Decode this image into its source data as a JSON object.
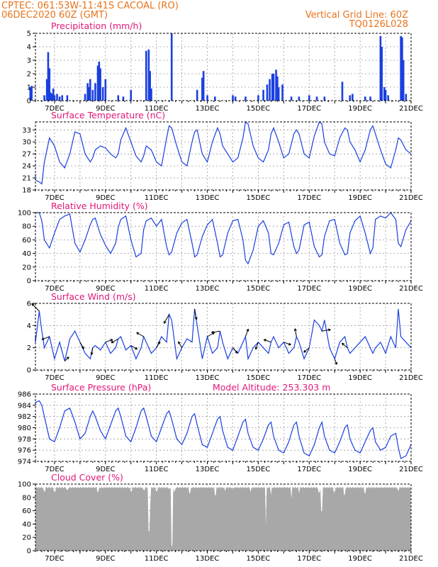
{
  "header": {
    "line1": "CPTEC:  061:53W-11:41S  CACOAL (RO)",
    "line2": "06DEC2020 60Z (GMT)",
    "right1": "Vertical Grid Line: 60Z",
    "right2": "TQ0126L028"
  },
  "colors": {
    "header": "#e8731c",
    "panel_title": "#e0187a",
    "series": "#1a3fe0",
    "cloud_fill": "#a8a8a8",
    "wind_arrow": "#000000"
  },
  "chart_data": [
    {
      "id": "precip",
      "type": "bar",
      "title": "Precipitation (mm/h)",
      "ylim": [
        0,
        5
      ],
      "yticks": [
        0,
        1,
        2,
        3,
        4,
        5
      ],
      "x_tick_labels": [
        "7DEC",
        "9DEC",
        "11DEC",
        "13DEC",
        "15DEC",
        "17DEC",
        "19DEC",
        "21DEC"
      ],
      "grid": true,
      "bars": [
        [
          6.05,
          1.0
        ],
        [
          6.1,
          1.1
        ],
        [
          6.6,
          0.4
        ],
        [
          6.7,
          1.6
        ],
        [
          6.75,
          3.6
        ],
        [
          6.8,
          2.4
        ],
        [
          6.85,
          0.6
        ],
        [
          6.9,
          0.5
        ],
        [
          6.95,
          0.9
        ],
        [
          7.0,
          0.4
        ],
        [
          7.1,
          0.5
        ],
        [
          7.2,
          0.3
        ],
        [
          7.3,
          0.4
        ],
        [
          7.5,
          0.4
        ],
        [
          8.2,
          0.5
        ],
        [
          8.3,
          1.3
        ],
        [
          8.35,
          1.0
        ],
        [
          8.4,
          1.6
        ],
        [
          8.5,
          0.8
        ],
        [
          8.6,
          1.3
        ],
        [
          8.7,
          2.6
        ],
        [
          8.75,
          2.9
        ],
        [
          8.8,
          2.4
        ],
        [
          8.9,
          1.0
        ],
        [
          9.0,
          1.6
        ],
        [
          9.5,
          0.4
        ],
        [
          9.7,
          0.3
        ],
        [
          10.0,
          0.8
        ],
        [
          10.6,
          3.7
        ],
        [
          10.7,
          3.8
        ],
        [
          10.75,
          2.2
        ],
        [
          10.8,
          0.9
        ],
        [
          11.6,
          5.0
        ],
        [
          12.6,
          0.8
        ],
        [
          12.8,
          1.7
        ],
        [
          12.85,
          2.2
        ],
        [
          13.0,
          0.4
        ],
        [
          13.3,
          0.3
        ],
        [
          14.0,
          0.4
        ],
        [
          14.1,
          0.3
        ],
        [
          14.5,
          0.3
        ],
        [
          15.0,
          0.4
        ],
        [
          15.2,
          0.8
        ],
        [
          15.35,
          1.2
        ],
        [
          15.45,
          1.6
        ],
        [
          15.55,
          2.0
        ],
        [
          15.6,
          2.0
        ],
        [
          15.7,
          2.3
        ],
        [
          15.75,
          1.8
        ],
        [
          15.8,
          1.0
        ],
        [
          15.95,
          1.2
        ],
        [
          16.3,
          0.3
        ],
        [
          16.6,
          0.3
        ],
        [
          17.0,
          0.4
        ],
        [
          17.3,
          0.3
        ],
        [
          17.6,
          0.3
        ],
        [
          18.3,
          1.4
        ],
        [
          18.6,
          0.4
        ],
        [
          18.7,
          0.5
        ],
        [
          19.2,
          0.3
        ],
        [
          19.4,
          0.3
        ],
        [
          19.8,
          4.8
        ],
        [
          19.85,
          4.0
        ],
        [
          19.95,
          1.0
        ],
        [
          20.0,
          0.8
        ],
        [
          20.1,
          0.4
        ],
        [
          20.6,
          4.8
        ],
        [
          20.65,
          4.7
        ],
        [
          20.7,
          3.0
        ],
        [
          20.8,
          0.5
        ]
      ]
    },
    {
      "id": "temp",
      "type": "line",
      "title": "Surface Temperature (nC)",
      "ylim": [
        18,
        35
      ],
      "yticks": [
        18,
        21,
        24,
        27,
        30,
        33
      ],
      "x_tick_labels": [
        "7DEC",
        "9DEC",
        "11DEC",
        "13DEC",
        "15DEC",
        "17DEC",
        "19DEC",
        "21DEC"
      ],
      "grid": true,
      "x": [
        6.0,
        6.2,
        6.4,
        6.5,
        6.6,
        6.8,
        7.0,
        7.2,
        7.4,
        7.6,
        7.8,
        8.0,
        8.2,
        8.4,
        8.5,
        8.6,
        8.8,
        9.0,
        9.2,
        9.4,
        9.5,
        9.6,
        9.8,
        10.0,
        10.2,
        10.4,
        10.5,
        10.6,
        10.8,
        11.0,
        11.2,
        11.4,
        11.5,
        11.6,
        11.8,
        12.0,
        12.2,
        12.4,
        12.5,
        12.6,
        12.8,
        13.0,
        13.2,
        13.4,
        13.5,
        13.6,
        13.8,
        14.0,
        14.2,
        14.4,
        14.5,
        14.6,
        14.8,
        15.0,
        15.2,
        15.4,
        15.5,
        15.6,
        15.8,
        16.0,
        16.2,
        16.4,
        16.5,
        16.6,
        16.8,
        17.0,
        17.2,
        17.4,
        17.5,
        17.6,
        17.8,
        18.0,
        18.2,
        18.4,
        18.5,
        18.6,
        18.8,
        19.0,
        19.2,
        19.4,
        19.5,
        19.6,
        19.8,
        20.0,
        20.2,
        20.4,
        20.5,
        20.6,
        20.8,
        21.0
      ],
      "y": [
        22.0,
        20.5,
        20.0,
        19.5,
        25.0,
        31.0,
        29.0,
        25.0,
        23.5,
        27.0,
        32.5,
        32.0,
        27.0,
        25.0,
        26.0,
        28.0,
        29.0,
        28.5,
        27.0,
        26.0,
        27.0,
        30.5,
        33.5,
        30.0,
        26.5,
        25.0,
        26.5,
        29.0,
        28.0,
        25.0,
        24.0,
        31.0,
        34.0,
        33.5,
        29.0,
        25.0,
        24.0,
        30.0,
        32.5,
        33.0,
        27.0,
        25.0,
        30.0,
        33.5,
        32.0,
        29.0,
        27.0,
        25.0,
        26.0,
        31.0,
        35.0,
        34.5,
        29.0,
        26.0,
        25.0,
        28.0,
        32.0,
        33.5,
        30.0,
        26.0,
        27.0,
        32.0,
        33.0,
        32.0,
        27.0,
        26.0,
        31.5,
        35.0,
        34.5,
        30.0,
        27.0,
        26.5,
        31.0,
        33.5,
        33.0,
        30.0,
        28.0,
        25.0,
        28.0,
        33.0,
        34.0,
        32.0,
        28.0,
        24.5,
        23.5,
        28.0,
        31.0,
        30.5,
        28.0,
        27.0
      ]
    },
    {
      "id": "rh",
      "type": "line",
      "title": "Relative Humidity (%)",
      "ylim": [
        0,
        100
      ],
      "yticks": [
        0,
        20,
        40,
        60,
        80,
        100
      ],
      "x_tick_labels": [
        "7DEC",
        "9DEC",
        "11DEC",
        "13DEC",
        "15DEC",
        "17DEC",
        "19DEC",
        "21DEC"
      ],
      "grid": true,
      "x": [
        6.0,
        6.2,
        6.4,
        6.5,
        6.6,
        6.8,
        7.0,
        7.2,
        7.4,
        7.6,
        7.8,
        8.0,
        8.2,
        8.4,
        8.5,
        8.6,
        8.8,
        9.0,
        9.2,
        9.4,
        9.5,
        9.6,
        9.8,
        10.0,
        10.2,
        10.4,
        10.5,
        10.6,
        10.8,
        11.0,
        11.2,
        11.4,
        11.5,
        11.6,
        11.8,
        12.0,
        12.2,
        12.4,
        12.5,
        12.6,
        12.8,
        13.0,
        13.2,
        13.4,
        13.5,
        13.6,
        13.8,
        14.0,
        14.2,
        14.4,
        14.5,
        14.6,
        14.8,
        15.0,
        15.2,
        15.4,
        15.5,
        15.6,
        15.8,
        16.0,
        16.2,
        16.4,
        16.5,
        16.6,
        16.8,
        17.0,
        17.2,
        17.4,
        17.5,
        17.6,
        17.8,
        18.0,
        18.2,
        18.4,
        18.5,
        18.6,
        18.8,
        19.0,
        19.2,
        19.4,
        19.5,
        19.6,
        19.8,
        20.0,
        20.2,
        20.4,
        20.5,
        20.6,
        20.8,
        21.0
      ],
      "y": [
        100,
        100,
        100,
        88,
        60,
        48,
        70,
        90,
        95,
        98,
        55,
        42,
        60,
        82,
        90,
        92,
        68,
        52,
        40,
        55,
        78,
        90,
        95,
        60,
        35,
        40,
        75,
        88,
        92,
        80,
        90,
        50,
        38,
        42,
        70,
        85,
        90,
        55,
        35,
        38,
        65,
        82,
        90,
        55,
        35,
        38,
        70,
        88,
        90,
        60,
        30,
        25,
        45,
        80,
        88,
        70,
        40,
        38,
        55,
        82,
        86,
        50,
        40,
        45,
        82,
        86,
        50,
        35,
        38,
        65,
        88,
        90,
        55,
        38,
        40,
        70,
        88,
        95,
        70,
        40,
        48,
        90,
        95,
        92,
        100,
        90,
        55,
        50,
        75,
        88
      ]
    },
    {
      "id": "wind",
      "type": "line",
      "title": "Surface Wind (m/s)",
      "ylim": [
        0,
        6
      ],
      "yticks": [
        0,
        2,
        4,
        6
      ],
      "x_tick_labels": [
        "7DEC",
        "9DEC",
        "11DEC",
        "13DEC",
        "15DEC",
        "17DEC",
        "19DEC",
        "21DEC"
      ],
      "grid": true,
      "x": [
        6.0,
        6.2,
        6.4,
        6.5,
        6.6,
        6.8,
        7.0,
        7.2,
        7.4,
        7.6,
        7.8,
        8.0,
        8.2,
        8.4,
        8.5,
        8.6,
        8.8,
        9.0,
        9.2,
        9.4,
        9.5,
        9.6,
        9.8,
        10.0,
        10.2,
        10.4,
        10.5,
        10.6,
        10.8,
        11.0,
        11.2,
        11.4,
        11.5,
        11.6,
        11.8,
        12.0,
        12.2,
        12.4,
        12.5,
        12.6,
        12.8,
        13.0,
        13.2,
        13.4,
        13.5,
        13.6,
        13.8,
        14.0,
        14.2,
        14.4,
        14.5,
        14.6,
        14.8,
        15.0,
        15.2,
        15.4,
        15.5,
        15.6,
        15.8,
        16.0,
        16.2,
        16.4,
        16.5,
        16.6,
        16.8,
        17.0,
        17.2,
        17.4,
        17.5,
        17.6,
        17.8,
        18.0,
        18.2,
        18.4,
        18.5,
        18.6,
        18.8,
        19.0,
        19.2,
        19.4,
        19.5,
        19.6,
        19.8,
        20.0,
        20.2,
        20.4,
        20.5,
        20.6,
        20.8,
        21.0
      ],
      "y": [
        3.0,
        2.5,
        5.3,
        3.5,
        2.0,
        3.0,
        1.0,
        2.5,
        0.8,
        2.8,
        3.5,
        2.5,
        1.5,
        1.0,
        2.0,
        2.2,
        1.8,
        2.5,
        1.5,
        2.0,
        2.8,
        3.0,
        1.8,
        2.2,
        1.0,
        2.0,
        3.0,
        2.5,
        1.5,
        2.0,
        3.0,
        2.5,
        5.0,
        4.5,
        1.0,
        2.0,
        2.8,
        2.5,
        5.5,
        4.0,
        1.0,
        3.0,
        1.5,
        2.0,
        3.5,
        2.5,
        1.0,
        2.0,
        1.5,
        2.5,
        3.0,
        1.0,
        2.0,
        2.5,
        2.0,
        1.5,
        2.5,
        3.0,
        2.0,
        2.5,
        1.5,
        2.0,
        3.0,
        2.5,
        1.0,
        2.0,
        4.5,
        4.0,
        3.5,
        4.5,
        2.0,
        1.0,
        2.5,
        3.0,
        2.0,
        1.5,
        2.0,
        2.5,
        3.0,
        2.0,
        1.5,
        2.0,
        2.5,
        1.5,
        3.0,
        2.0,
        5.5,
        3.0,
        2.5,
        2.0
      ]
    },
    {
      "id": "pres",
      "type": "line",
      "title": "Surface Pressure (hPa)",
      "annotation": "Model Altitude: 253.303 m",
      "ylim": [
        974,
        986
      ],
      "yticks": [
        974,
        976,
        978,
        980,
        982,
        984,
        986
      ],
      "x_tick_labels": [
        "7DEC",
        "9DEC",
        "11DEC",
        "13DEC",
        "15DEC",
        "17DEC",
        "19DEC",
        "21DEC"
      ],
      "grid": true,
      "x": [
        6.0,
        6.2,
        6.4,
        6.5,
        6.6,
        6.8,
        7.0,
        7.2,
        7.4,
        7.6,
        7.8,
        8.0,
        8.2,
        8.4,
        8.5,
        8.6,
        8.8,
        9.0,
        9.2,
        9.4,
        9.5,
        9.6,
        9.8,
        10.0,
        10.2,
        10.4,
        10.5,
        10.6,
        10.8,
        11.0,
        11.2,
        11.4,
        11.5,
        11.6,
        11.8,
        12.0,
        12.2,
        12.4,
        12.5,
        12.6,
        12.8,
        13.0,
        13.2,
        13.4,
        13.5,
        13.6,
        13.8,
        14.0,
        14.2,
        14.4,
        14.5,
        14.6,
        14.8,
        15.0,
        15.2,
        15.4,
        15.5,
        15.6,
        15.8,
        16.0,
        16.2,
        16.4,
        16.5,
        16.6,
        16.8,
        17.0,
        17.2,
        17.4,
        17.5,
        17.6,
        17.8,
        18.0,
        18.2,
        18.4,
        18.5,
        18.6,
        18.8,
        19.0,
        19.2,
        19.4,
        19.5,
        19.6,
        19.8,
        20.0,
        20.2,
        20.4,
        20.5,
        20.6,
        20.8,
        21.0
      ],
      "y": [
        984.0,
        984.5,
        984.8,
        984.0,
        982.0,
        978.0,
        977.5,
        980.0,
        983.0,
        983.5,
        981.0,
        978.0,
        979.0,
        982.0,
        983.0,
        982.0,
        979.5,
        978.0,
        980.5,
        983.0,
        983.5,
        982.0,
        978.5,
        977.5,
        980.0,
        983.0,
        983.5,
        982.0,
        978.5,
        977.5,
        980.0,
        982.5,
        983.0,
        981.5,
        978.0,
        977.0,
        979.0,
        982.0,
        982.5,
        980.5,
        977.0,
        976.5,
        979.0,
        981.5,
        982.0,
        979.5,
        976.5,
        976.0,
        978.5,
        981.0,
        981.5,
        979.0,
        976.5,
        976.0,
        978.0,
        980.5,
        981.0,
        978.5,
        976.0,
        975.5,
        977.5,
        980.5,
        981.0,
        978.5,
        975.5,
        975.0,
        977.0,
        980.0,
        981.0,
        978.5,
        976.0,
        975.5,
        977.5,
        980.0,
        980.5,
        978.0,
        976.0,
        975.5,
        977.5,
        979.5,
        980.0,
        977.5,
        976.0,
        976.5,
        978.5,
        979.0,
        976.5,
        974.5,
        975.0,
        977.0
      ]
    },
    {
      "id": "cloud",
      "type": "area",
      "title": "Cloud Cover (%)",
      "ylim": [
        0,
        100
      ],
      "yticks": [
        0,
        20,
        40,
        60,
        80,
        100
      ],
      "x_tick_labels": [
        "7DEC",
        "9DEC",
        "11DEC",
        "13DEC",
        "15DEC",
        "17DEC",
        "19DEC",
        "21DEC"
      ],
      "grid": true,
      "baseline": 96,
      "dips": [
        [
          6.6,
          90
        ],
        [
          7.0,
          88
        ],
        [
          7.5,
          92
        ],
        [
          8.7,
          90
        ],
        [
          10.0,
          90
        ],
        [
          10.5,
          92
        ],
        [
          10.7,
          30
        ],
        [
          10.75,
          70
        ],
        [
          11.0,
          90
        ],
        [
          11.5,
          94
        ],
        [
          11.6,
          8
        ],
        [
          11.7,
          90
        ],
        [
          12.3,
          88
        ],
        [
          13.3,
          85
        ],
        [
          13.7,
          90
        ],
        [
          14.0,
          92
        ],
        [
          14.7,
          88
        ],
        [
          15.3,
          40
        ],
        [
          15.5,
          85
        ],
        [
          16.3,
          80
        ],
        [
          16.6,
          88
        ],
        [
          17.4,
          88
        ],
        [
          17.5,
          60
        ],
        [
          18.0,
          88
        ],
        [
          18.4,
          85
        ],
        [
          19.2,
          88
        ],
        [
          20.5,
          92
        ]
      ]
    }
  ]
}
